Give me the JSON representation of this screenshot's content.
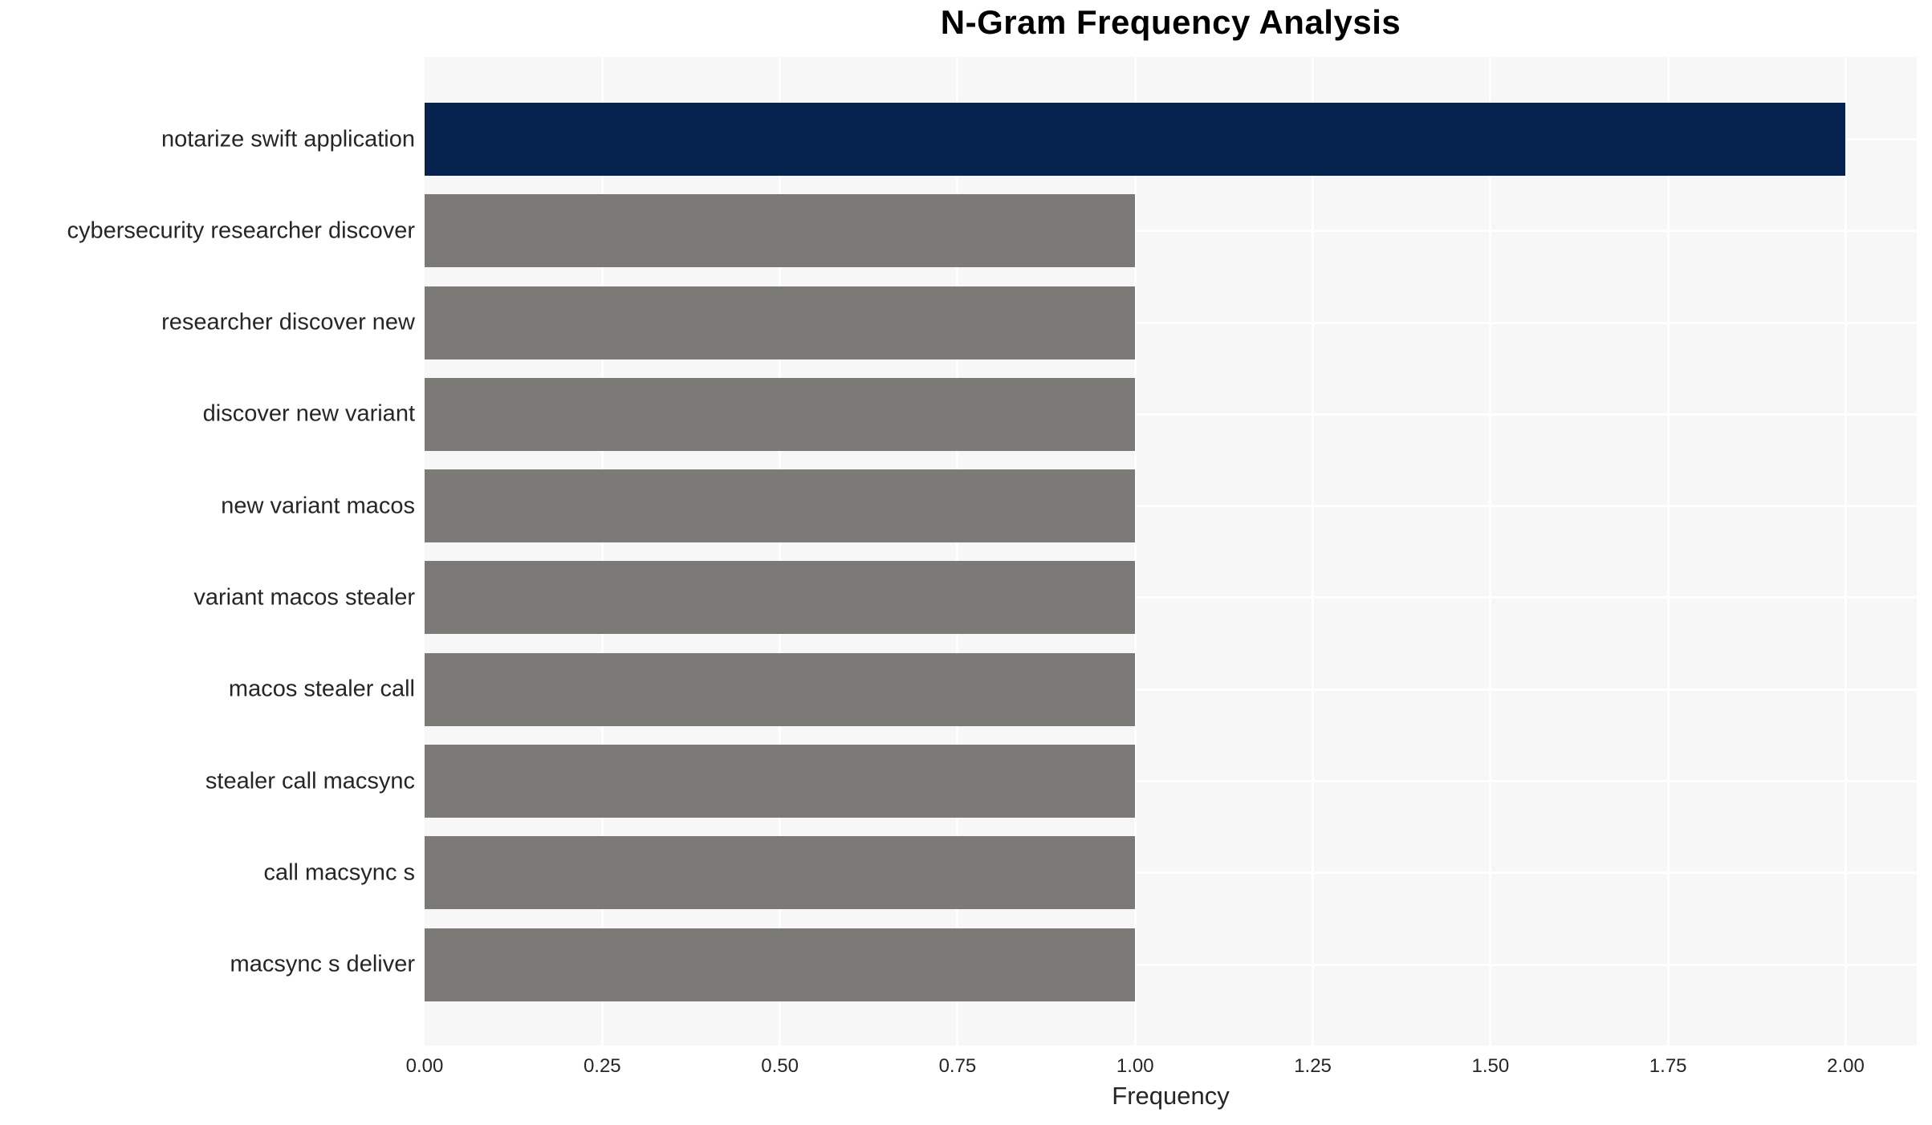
{
  "title": "N-Gram Frequency Analysis",
  "xlabel": "Frequency",
  "colors": {
    "highlight_bar": "#05234e",
    "default_bar": "#7b7a77",
    "plot_background": "#f7f7f7",
    "gridline": "#ffffff",
    "tick_text": "#262626",
    "title_text": "#000000"
  },
  "chart_data": {
    "type": "bar",
    "orientation": "horizontal",
    "title": "N-Gram Frequency Analysis",
    "xlabel": "Frequency",
    "ylabel": "",
    "categories": [
      "notarize swift application",
      "cybersecurity researcher discover",
      "researcher discover new",
      "discover new variant",
      "new variant macos",
      "variant macos stealer",
      "macos stealer call",
      "stealer call macsync",
      "call macsync s",
      "macsync s deliver"
    ],
    "values": [
      2,
      1,
      1,
      1,
      1,
      1,
      1,
      1,
      1,
      1
    ],
    "bar_colors": [
      "#05234e",
      "#7b7a77",
      "#7b7a77",
      "#7b7a77",
      "#7b7a77",
      "#7b7a77",
      "#7b7a77",
      "#7b7a77",
      "#7b7a77",
      "#7b7a77"
    ],
    "xlim": [
      0,
      2.1
    ],
    "xticks": [
      0,
      0.25,
      0.5,
      0.75,
      1.0,
      1.25,
      1.5,
      1.75,
      2.0
    ],
    "xtick_labels": [
      "0.00",
      "0.25",
      "0.50",
      "0.75",
      "1.00",
      "1.25",
      "1.50",
      "1.75",
      "2.00"
    ],
    "grid": true,
    "legend": false
  }
}
